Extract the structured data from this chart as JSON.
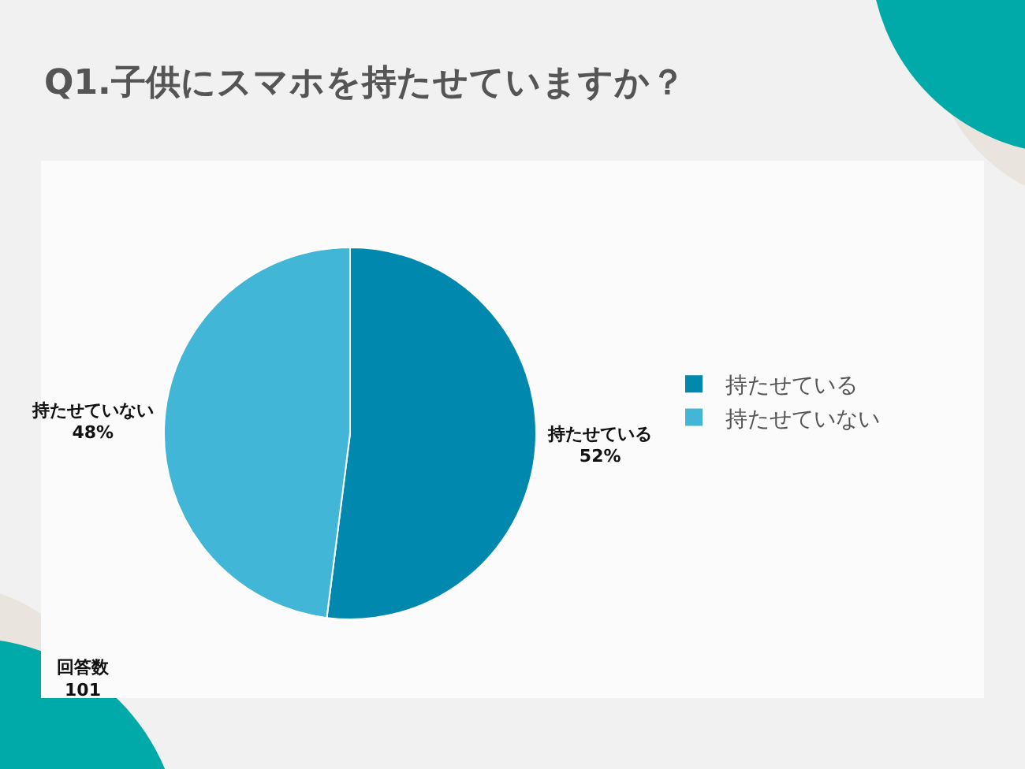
{
  "chart_data": {
    "type": "pie",
    "title": "Q1.子供にスマホを持たせていますか？",
    "categories": [
      "持たせている",
      "持たせていない"
    ],
    "values": [
      52,
      48
    ],
    "colors": [
      "#0088ae",
      "#42b6d6"
    ],
    "value_labels": [
      "52%",
      "48%"
    ],
    "legend": "right",
    "annotations": [
      "回答数\n101"
    ]
  }
}
